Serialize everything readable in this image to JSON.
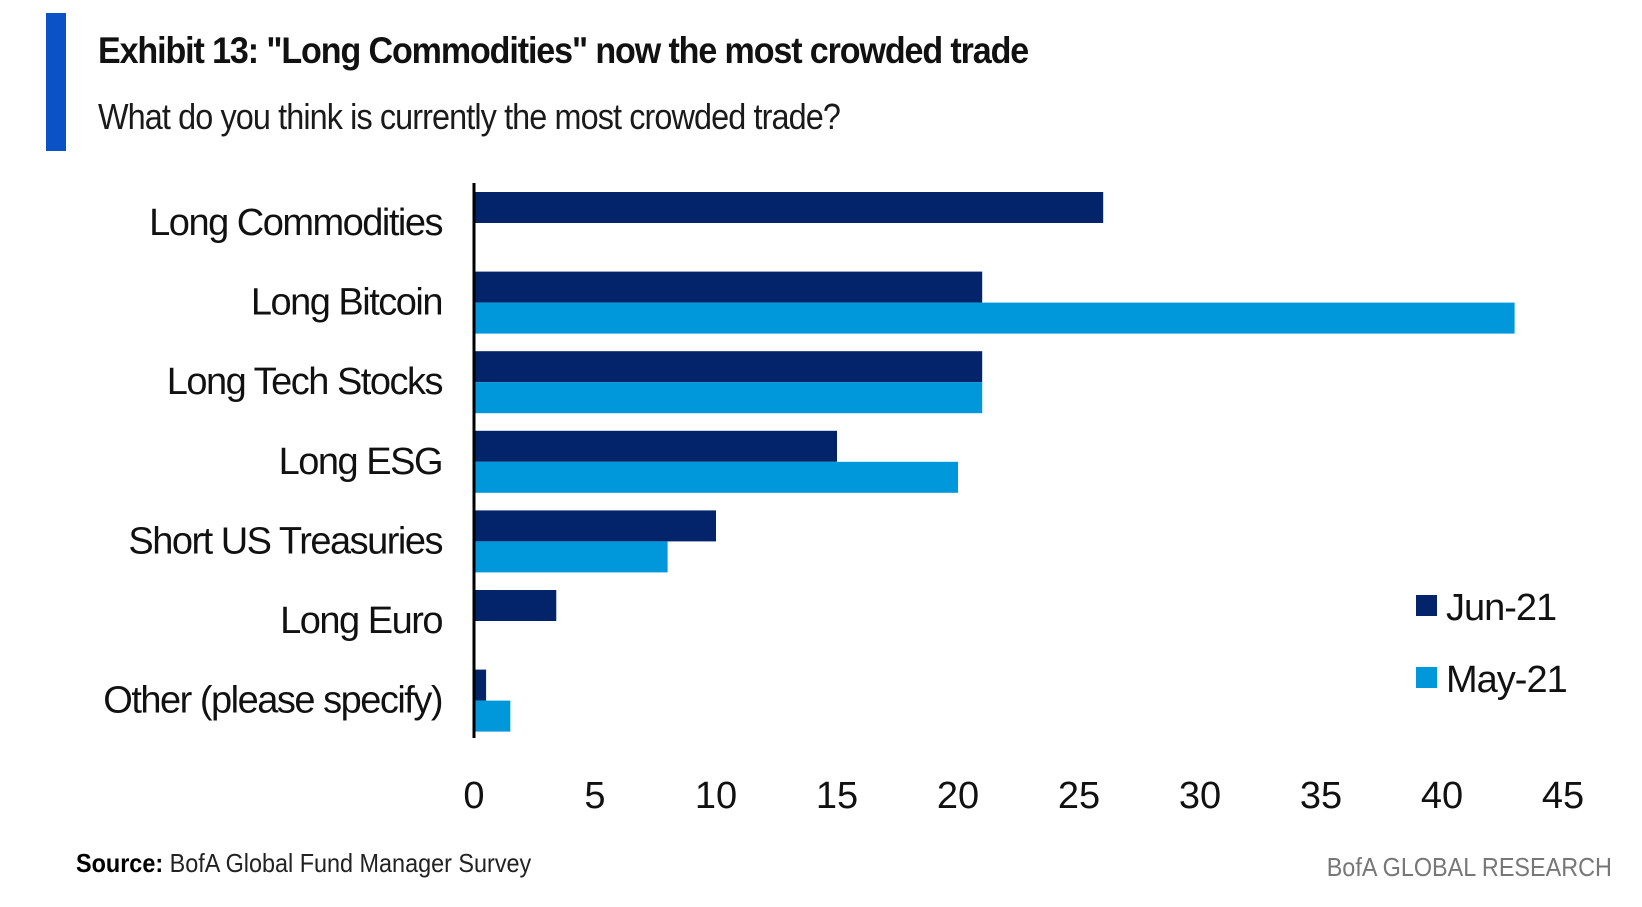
{
  "header": {
    "title": "Exhibit 13: \"Long Commodities\" now the most crowded trade",
    "subtitle": "What do you think is currently the most crowded trade?",
    "accent_color": "#0a52c6"
  },
  "footer": {
    "source_label": "Source:",
    "source_text": " BofA Global Fund Manager Survey",
    "brand": "BofA GLOBAL RESEARCH"
  },
  "chart_data": {
    "type": "bar",
    "orientation": "horizontal",
    "title": "Exhibit 13: \"Long Commodities\" now the most crowded trade",
    "subtitle": "What do you think is currently the most crowded trade?",
    "categories": [
      "Long Commodities",
      "Long Bitcoin",
      "Long Tech Stocks",
      "Long ESG",
      "Short US Treasuries",
      "Long Euro",
      "Other (please specify)"
    ],
    "series": [
      {
        "name": "Jun-21",
        "color": "#03236a",
        "values": [
          26,
          21,
          21,
          15,
          10,
          3.4,
          0.5
        ]
      },
      {
        "name": "May-21",
        "color": "#0097db",
        "values": [
          null,
          43,
          21,
          20,
          8,
          null,
          1.5
        ]
      }
    ],
    "xlabel": "",
    "ylabel": "",
    "xlim": [
      0,
      45
    ],
    "xticks": [
      "0",
      "5",
      "10",
      "15",
      "20",
      "25",
      "30",
      "35",
      "40",
      "45"
    ],
    "grid": false,
    "legend_position": "bottom-right"
  }
}
